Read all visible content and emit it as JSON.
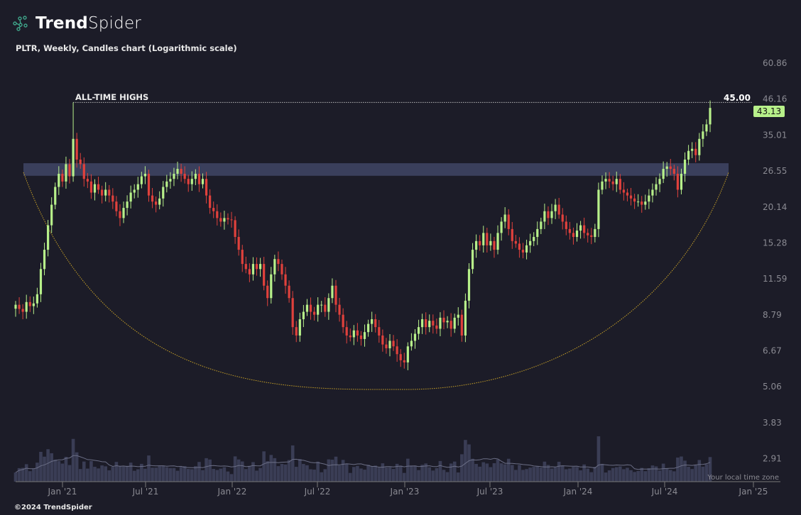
{
  "brand": {
    "name_bold": "Trend",
    "name_light": "Spider"
  },
  "subtitle": "PLTR, Weekly, Candles chart (Logarithmic scale)",
  "footer": "©2024 TrendSpider",
  "colors": {
    "background": "#1c1c28",
    "up": "#b7f08a",
    "down": "#e0413c",
    "band": "#3a3f5c",
    "cup": "#c9a227",
    "volume": "#3a3d55"
  },
  "chart_data": {
    "type": "candlestick",
    "title": "PLTR, Weekly, Candles chart (Logarithmic scale)",
    "y_scale": "log",
    "ylim": [
      2.6,
      70
    ],
    "y_ticks": [
      "60.86",
      "46.16",
      "35.01",
      "26.55",
      "20.14",
      "15.28",
      "11.59",
      "8.79",
      "6.67",
      "5.06",
      "3.83",
      "2.91"
    ],
    "x_ticks": [
      "Jan '21",
      "Jul '21",
      "Jan '22",
      "Jul '22",
      "Jan '23",
      "Jul '23",
      "Jan '24",
      "Jul '24",
      "Jan '25"
    ],
    "annotation": "ALL-TIME HIGHS",
    "ath_value": "45.00",
    "last_price": "43.13",
    "resistance_zone": [
      25.6,
      28.2
    ],
    "timezone_note": "Your local time zone",
    "ath_index": 16,
    "closes": [
      9.5,
      9.2,
      9.0,
      9.7,
      9.4,
      9.6,
      10.3,
      12.5,
      14.5,
      17.5,
      20.5,
      23.5,
      26.0,
      24.5,
      28,
      25.5,
      34,
      29,
      28,
      25,
      24.5,
      22.5,
      24,
      23,
      22,
      23,
      22,
      21,
      19.5,
      18.5,
      20,
      21,
      22.5,
      23,
      24,
      25.5,
      26,
      22,
      21,
      20.5,
      21.5,
      23.5,
      24.5,
      25,
      26,
      27,
      26,
      25,
      24,
      25,
      26,
      24,
      25,
      22,
      20,
      19.5,
      18.5,
      18,
      18.5,
      18.3,
      18.2,
      16,
      14.5,
      13,
      12.5,
      12,
      13,
      12.5,
      13,
      11,
      10,
      12,
      13.5,
      13,
      12,
      11,
      10,
      8,
      7.5,
      8.5,
      9,
      9.5,
      9,
      8.8,
      9.5,
      9.5,
      9,
      10,
      11,
      9.5,
      8.8,
      8,
      7.5,
      7.4,
      7.8,
      7.5,
      7.3,
      7.7,
      8.2,
      8.5,
      8,
      7.5,
      7,
      6.8,
      7.2,
      6.9,
      6.5,
      6.2,
      6.1,
      6.9,
      7.2,
      7.6,
      8,
      8.5,
      8,
      8.4,
      8.1,
      7.9,
      8.6,
      8.3,
      8.4,
      7.9,
      8.6,
      8.8,
      7.5,
      9.8,
      12.5,
      14.5,
      15.5,
      15,
      16.5,
      15,
      15.5,
      14.5,
      16.5,
      18,
      19,
      17,
      15.5,
      15.2,
      14.5,
      14.2,
      15,
      15.5,
      16,
      17,
      18,
      19.5,
      18.5,
      19.5,
      20.5,
      19,
      18,
      17,
      16.5,
      16,
      16.8,
      17.5,
      16.5,
      16.2,
      16,
      17,
      23,
      24.5,
      25,
      24.5,
      24,
      25,
      23,
      22.5,
      22,
      21.5,
      21,
      21,
      20.5,
      21,
      22,
      23,
      24,
      25,
      27,
      27.5,
      27,
      26,
      23,
      26,
      29,
      31,
      31.5,
      30,
      34,
      36,
      38,
      43.13
    ]
  }
}
